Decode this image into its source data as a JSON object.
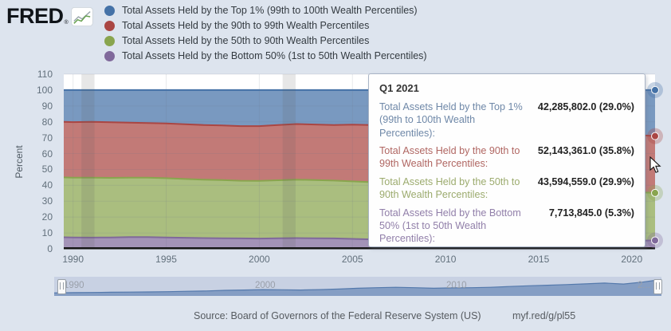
{
  "header": {
    "logo_text": "FRED",
    "logo_reg": "®",
    "legend": [
      {
        "label": "Total Assets Held by the Top 1% (99th to 100th Wealth Percentiles)",
        "color": "#4572a7"
      },
      {
        "label": "Total Assets Held by the 90th to 99th Wealth Percentiles",
        "color": "#aa4643"
      },
      {
        "label": "Total Assets Held by the 50th to 90th Wealth Percentiles",
        "color": "#89a54e"
      },
      {
        "label": "Total Assets Held by the Bottom 50% (1st to 50th Wealth Percentiles)",
        "color": "#80699b"
      }
    ]
  },
  "chart": {
    "ylabel": "Percent",
    "y_ticks": [
      0,
      10,
      20,
      30,
      40,
      50,
      60,
      70,
      80,
      90,
      100,
      110
    ],
    "x_ticks": [
      1990,
      1995,
      2000,
      2005,
      2010,
      2015,
      2020
    ]
  },
  "tooltip": {
    "title": "Q1 2021",
    "rows": [
      {
        "label": "Total Assets Held by the Top 1% (99th to 100th Wealth Percentiles):",
        "value": "42,285,802.0 (29.0%)",
        "label_color": "#6f88a8"
      },
      {
        "label": "Total Assets Held by the 90th to 99th Wealth Percentiles:",
        "value": "52,143,361.0 (35.8%)",
        "label_color": "#b06662"
      },
      {
        "label": "Total Assets Held by the 50th to 90th Wealth Percentiles:",
        "value": "43,594,559.0 (29.9%)",
        "label_color": "#9cab6e"
      },
      {
        "label": "Total Assets Held by the Bottom 50% (1st to 50th Wealth Percentiles):",
        "value": "7,713,845.0 (5.3%)",
        "label_color": "#917fa9"
      }
    ]
  },
  "navigator": {
    "labels": [
      {
        "text": "1990",
        "year": 1990
      },
      {
        "text": "2000",
        "year": 2000
      },
      {
        "text": "2010",
        "year": 2010
      },
      {
        "text": "2...",
        "year": 2020
      }
    ]
  },
  "footer": {
    "source": "Source: Board of Governors of the Federal Reserve System (US)",
    "link": "myf.red/g/pl55"
  },
  "chart_data": {
    "type": "area",
    "stacking": "percent",
    "title": "",
    "xlabel": "",
    "ylabel": "Percent",
    "ylim": [
      0,
      110
    ],
    "x_range": [
      1989.5,
      2021.25
    ],
    "grid": true,
    "legend_position": "top-left",
    "x": [
      1989.5,
      1990,
      1991,
      1992,
      1993,
      1994,
      1995,
      1996,
      1997,
      1998,
      1999,
      2000,
      2001,
      2002,
      2003,
      2004,
      2005,
      2006,
      2007,
      2008,
      2009,
      2010,
      2011,
      2012,
      2013,
      2014,
      2015,
      2016,
      2017,
      2018,
      2019,
      2020,
      2021.25
    ],
    "series": [
      {
        "name": "Total Assets Held by the Top 1% (99th to 100th Wealth Percentiles)",
        "color": "#4572a7",
        "values": [
          20.0,
          20.2,
          20.0,
          20.3,
          20.5,
          20.8,
          21.0,
          21.5,
          22.0,
          22.3,
          22.7,
          22.7,
          22.0,
          21.4,
          21.7,
          22.0,
          21.8,
          22.0,
          22.2,
          21.5,
          22.0,
          23.0,
          23.5,
          24.0,
          24.5,
          24.8,
          25.0,
          25.5,
          26.0,
          26.5,
          27.0,
          28.0,
          29.0
        ]
      },
      {
        "name": "Total Assets Held by the 90th to 99th Wealth Percentiles",
        "color": "#aa4643",
        "values": [
          35.0,
          35.0,
          35.2,
          35.0,
          34.7,
          34.4,
          34.5,
          34.5,
          34.4,
          34.4,
          34.4,
          34.5,
          34.8,
          35.0,
          35.0,
          35.0,
          35.7,
          36.0,
          36.3,
          37.5,
          37.5,
          37.5,
          37.7,
          37.5,
          37.5,
          37.4,
          37.5,
          37.3,
          37.0,
          36.7,
          36.5,
          36.2,
          35.8
        ]
      },
      {
        "name": "Total Assets Held by the 50th to 90th Wealth Percentiles",
        "color": "#89a54e",
        "values": [
          37.7,
          37.6,
          37.7,
          37.5,
          37.4,
          37.4,
          37.3,
          37.0,
          36.8,
          36.6,
          36.3,
          36.3,
          36.5,
          36.8,
          36.6,
          36.4,
          36.2,
          36.0,
          35.7,
          35.8,
          36.2,
          35.5,
          35.0,
          34.6,
          34.0,
          33.6,
          33.1,
          32.6,
          32.2,
          31.8,
          31.3,
          30.8,
          29.9
        ]
      },
      {
        "name": "Total Assets Held by the Bottom 50% (1st to 50th Wealth Percentiles)",
        "color": "#80699b",
        "values": [
          7.3,
          7.2,
          7.1,
          7.2,
          7.4,
          7.4,
          7.2,
          7.0,
          6.8,
          6.7,
          6.6,
          6.5,
          6.7,
          6.8,
          6.7,
          6.6,
          6.3,
          6.0,
          5.8,
          5.2,
          4.3,
          4.0,
          3.8,
          3.9,
          4.0,
          4.2,
          4.4,
          4.6,
          4.8,
          5.0,
          5.2,
          5.0,
          5.3
        ]
      }
    ],
    "hover_point": {
      "label": "Q1 2021",
      "x": 2021.25,
      "values": [
        {
          "series": "Top 1%",
          "text": "42,285,802.0 (29.0%)"
        },
        {
          "series": "90th to 99th",
          "text": "52,143,361.0 (35.8%)"
        },
        {
          "series": "50th to 90th",
          "text": "43,594,559.0 (29.9%)"
        },
        {
          "series": "Bottom 50%",
          "text": "7,713,845.0 (5.3%)"
        }
      ]
    },
    "recessions": [
      [
        1990.45,
        1991.15
      ],
      [
        2001.25,
        2001.95
      ],
      [
        2007.95,
        2009.5
      ],
      [
        2020.15,
        2020.4
      ]
    ],
    "navigator": {
      "values": [
        0.16,
        0.17,
        0.18,
        0.19,
        0.2,
        0.21,
        0.22,
        0.24,
        0.26,
        0.29,
        0.31,
        0.33,
        0.32,
        0.31,
        0.33,
        0.36,
        0.4,
        0.43,
        0.45,
        0.43,
        0.4,
        0.42,
        0.43,
        0.45,
        0.49,
        0.53,
        0.56,
        0.59,
        0.63,
        0.67,
        0.62,
        0.72,
        0.86
      ]
    }
  }
}
